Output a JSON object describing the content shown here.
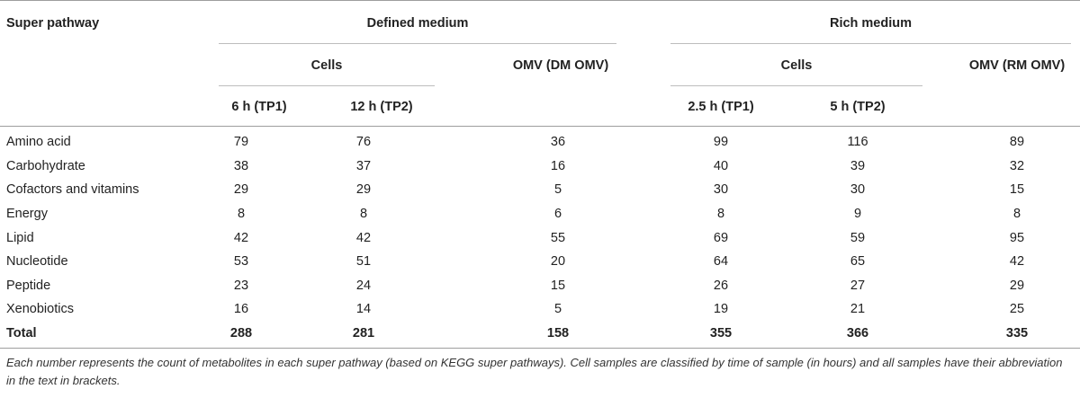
{
  "headers": {
    "super_pathway": "Super pathway",
    "defined_medium": "Defined medium",
    "rich_medium": "Rich medium",
    "cells_dm": "Cells",
    "cells_rm": "Cells",
    "omv_dm": "OMV (DM OMV)",
    "omv_rm": "OMV (RM OMV)",
    "tp_dm1": "6 h (TP1)",
    "tp_dm2": "12 h (TP2)",
    "tp_rm1": "2.5 h (TP1)",
    "tp_rm2": "5 h (TP2)"
  },
  "rows": [
    {
      "label": "Amino acid",
      "values": [
        "79",
        "76",
        "36",
        "99",
        "116",
        "89"
      ]
    },
    {
      "label": "Carbohydrate",
      "values": [
        "38",
        "37",
        "16",
        "40",
        "39",
        "32"
      ]
    },
    {
      "label": "Cofactors and vitamins",
      "values": [
        "29",
        "29",
        "5",
        "30",
        "30",
        "15"
      ]
    },
    {
      "label": "Energy",
      "values": [
        "8",
        "8",
        "6",
        "8",
        "9",
        "8"
      ]
    },
    {
      "label": "Lipid",
      "values": [
        "42",
        "42",
        "55",
        "69",
        "59",
        "95"
      ]
    },
    {
      "label": "Nucleotide",
      "values": [
        "53",
        "51",
        "20",
        "64",
        "65",
        "42"
      ]
    },
    {
      "label": "Peptide",
      "values": [
        "23",
        "24",
        "15",
        "26",
        "27",
        "29"
      ]
    },
    {
      "label": "Xenobiotics",
      "values": [
        "16",
        "14",
        "5",
        "19",
        "21",
        "25"
      ]
    }
  ],
  "total": {
    "label": "Total",
    "values": [
      "288",
      "281",
      "158",
      "355",
      "366",
      "335"
    ]
  },
  "footnote": "Each number represents the count of metabolites in each super pathway (based on KEGG super pathways). Cell samples are classified by time of sample (in hours) and all samples have their abbreviation in the text in brackets."
}
